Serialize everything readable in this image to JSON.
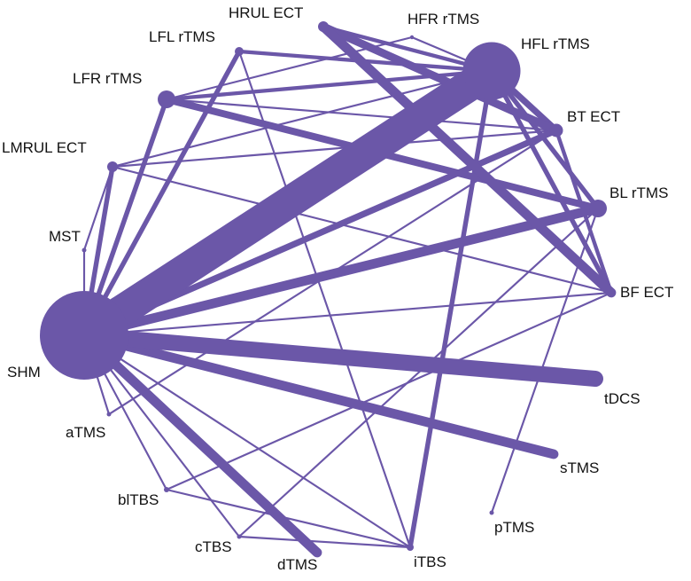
{
  "colors": {
    "network": "#6b57a8",
    "label": "#111111",
    "background": "#ffffff"
  },
  "nodes": [
    {
      "id": "SHM",
      "label": "SHM",
      "size": 10
    },
    {
      "id": "HFL",
      "label": "HFL rTMS",
      "size": 6.5
    },
    {
      "id": "HRUL",
      "label": "HRUL ECT",
      "size": 1.2
    },
    {
      "id": "HFR",
      "label": "HFR rTMS",
      "size": 0.4
    },
    {
      "id": "LFL",
      "label": "LFL rTMS",
      "size": 1
    },
    {
      "id": "LFR",
      "label": "LFR rTMS",
      "size": 2
    },
    {
      "id": "LMRUL",
      "label": "LMRUL ECT",
      "size": 1.2
    },
    {
      "id": "MST",
      "label": "MST",
      "size": 0.5
    },
    {
      "id": "BT",
      "label": "BT ECT",
      "size": 1.5
    },
    {
      "id": "BL",
      "label": "BL rTMS",
      "size": 2
    },
    {
      "id": "BF",
      "label": "BF ECT",
      "size": 1
    },
    {
      "id": "tDCS",
      "label": "tDCS",
      "size": 1.6
    },
    {
      "id": "sTMS",
      "label": "sTMS",
      "size": 0.7
    },
    {
      "id": "pTMS",
      "label": "pTMS",
      "size": 0.5
    },
    {
      "id": "iTBS",
      "label": "iTBS",
      "size": 0.8
    },
    {
      "id": "dTMS",
      "label": "dTMS",
      "size": 1
    },
    {
      "id": "cTBS",
      "label": "cTBS",
      "size": 0.5
    },
    {
      "id": "blTBS",
      "label": "blTBS",
      "size": 0.6
    },
    {
      "id": "aTMS",
      "label": "aTMS",
      "size": 0.5
    }
  ],
  "edges": [
    {
      "a": "SHM",
      "b": "HFL",
      "w": 10
    },
    {
      "a": "SHM",
      "b": "tDCS",
      "w": 5
    },
    {
      "a": "SHM",
      "b": "BL",
      "w": 3
    },
    {
      "a": "SHM",
      "b": "sTMS",
      "w": 3
    },
    {
      "a": "SHM",
      "b": "dTMS",
      "w": 3
    },
    {
      "a": "SHM",
      "b": "BT",
      "w": 2
    },
    {
      "a": "SHM",
      "b": "LFR",
      "w": 1.5
    },
    {
      "a": "SHM",
      "b": "LFL",
      "w": 1.5
    },
    {
      "a": "SHM",
      "b": "LMRUL",
      "w": 1.5
    },
    {
      "a": "SHM",
      "b": "MST",
      "w": 0.6
    },
    {
      "a": "SHM",
      "b": "BF",
      "w": 0.6
    },
    {
      "a": "SHM",
      "b": "blTBS",
      "w": 0.6
    },
    {
      "a": "SHM",
      "b": "cTBS",
      "w": 0.6
    },
    {
      "a": "SHM",
      "b": "iTBS",
      "w": 0.6
    },
    {
      "a": "SHM",
      "b": "aTMS",
      "w": 0.6
    },
    {
      "a": "HRUL",
      "b": "BF",
      "w": 3
    },
    {
      "a": "HRUL",
      "b": "BT",
      "w": 2.5
    },
    {
      "a": "HRUL",
      "b": "HFL",
      "w": 1.2
    },
    {
      "a": "HFL",
      "b": "BT",
      "w": 2
    },
    {
      "a": "HFL",
      "b": "BL",
      "w": 1.5
    },
    {
      "a": "HFL",
      "b": "BF",
      "w": 1.5
    },
    {
      "a": "HFL",
      "b": "LFR",
      "w": 1.2
    },
    {
      "a": "HFL",
      "b": "LFL",
      "w": 1.2
    },
    {
      "a": "HFL",
      "b": "iTBS",
      "w": 1.5
    },
    {
      "a": "HFL",
      "b": "LMRUL",
      "w": 0.6
    },
    {
      "a": "HFL",
      "b": "HFR",
      "w": 0.6
    },
    {
      "a": "LFR",
      "b": "BL",
      "w": 2.2
    },
    {
      "a": "LFR",
      "b": "HFR",
      "w": 0.6
    },
    {
      "a": "LFR",
      "b": "BT",
      "w": 0.6
    },
    {
      "a": "LMRUL",
      "b": "BT",
      "w": 0.6
    },
    {
      "a": "LMRUL",
      "b": "BF",
      "w": 0.6
    },
    {
      "a": "LMRUL",
      "b": "MST",
      "w": 0.6
    },
    {
      "a": "BT",
      "b": "BF",
      "w": 1.2
    },
    {
      "a": "BT",
      "b": "aTMS",
      "w": 0.6
    },
    {
      "a": "BL",
      "b": "pTMS",
      "w": 0.6
    },
    {
      "a": "BL",
      "b": "cTBS",
      "w": 0.6
    },
    {
      "a": "BF",
      "b": "blTBS",
      "w": 0.6
    },
    {
      "a": "LFL",
      "b": "iTBS",
      "w": 0.6
    },
    {
      "a": "blTBS",
      "b": "iTBS",
      "w": 0.6
    },
    {
      "a": "cTBS",
      "b": "iTBS",
      "w": 0.6
    }
  ]
}
